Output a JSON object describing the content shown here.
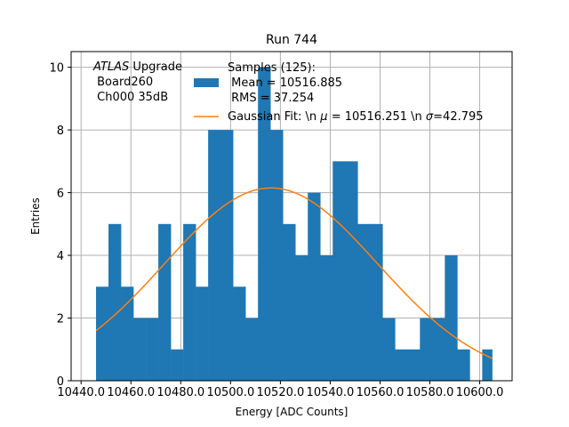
{
  "chart_data": {
    "type": "bar",
    "title": "Run 744",
    "xlabel": "Energy [ADC Counts]",
    "ylabel": "Entries",
    "xlim": [
      10436.0,
      10613.0
    ],
    "ylim": [
      0,
      10.5
    ],
    "grid": true,
    "x_ticks": [
      10440.0,
      10460.0,
      10480.0,
      10500.0,
      10520.0,
      10540.0,
      10560.0,
      10580.0,
      10600.0
    ],
    "x_tick_labels": [
      "10440.0",
      "10460.0",
      "10480.0",
      "10500.0",
      "10520.0",
      "10540.0",
      "10560.0",
      "10580.0",
      "10600.0"
    ],
    "y_ticks": [
      0,
      2,
      4,
      6,
      8,
      10
    ],
    "y_tick_labels": [
      "0",
      "2",
      "4",
      "6",
      "8",
      "10"
    ],
    "hist_color": "#1f77b4",
    "fit_color": "#ff7f0e",
    "series": [
      {
        "name": "Samples (125):\n Mean = 10516.885\n RMS = 37.254",
        "type": "histogram",
        "bin_edges": [
          10446.0,
          10451.0,
          10456.0,
          10461.0,
          10466.0,
          10471.0,
          10476.0,
          10481.0,
          10486.0,
          10491.0,
          10496.0,
          10501.0,
          10506.0,
          10511.0,
          10516.0,
          10521.0,
          10526.0,
          10531.0,
          10536.0,
          10541.0,
          10546.0,
          10551.0,
          10556.0,
          10561.0,
          10566.0,
          10571.0,
          10576.0,
          10581.0,
          10586.0,
          10591.0,
          10596.0,
          10601.0,
          10605.0
        ],
        "values": [
          3,
          5,
          3,
          2,
          2,
          5,
          1,
          5,
          3,
          8,
          8,
          3,
          2,
          10,
          8,
          5,
          4,
          6,
          4,
          7,
          7,
          5,
          5,
          2,
          1,
          1,
          2,
          2,
          4,
          1,
          0,
          1
        ]
      },
      {
        "name": "Gaussian Fit: \\n $\\mu$ = 10516.251 \\n $\\sigma$=42.795",
        "type": "line",
        "mu": 10516.251,
        "sigma": 42.795,
        "amplitude": 6.15,
        "x_range": [
          10446.0,
          10605.0
        ]
      }
    ],
    "annotation": {
      "italic": "ATLAS",
      "rest": " Upgrade",
      "line2": " Board260",
      "line3": " Ch000 35dB"
    },
    "legend": {
      "placement": "top-center",
      "hist_label_lines": [
        "Samples (125):",
        " Mean = 10516.885",
        " RMS = 37.254"
      ],
      "fit_label_prefix": "Gaussian Fit: \\n ",
      "fit_label_mu_symbol": "μ",
      "fit_label_mid": " = 10516.251 \\n ",
      "fit_label_sigma_symbol": "σ",
      "fit_label_suffix": "=42.795"
    }
  }
}
